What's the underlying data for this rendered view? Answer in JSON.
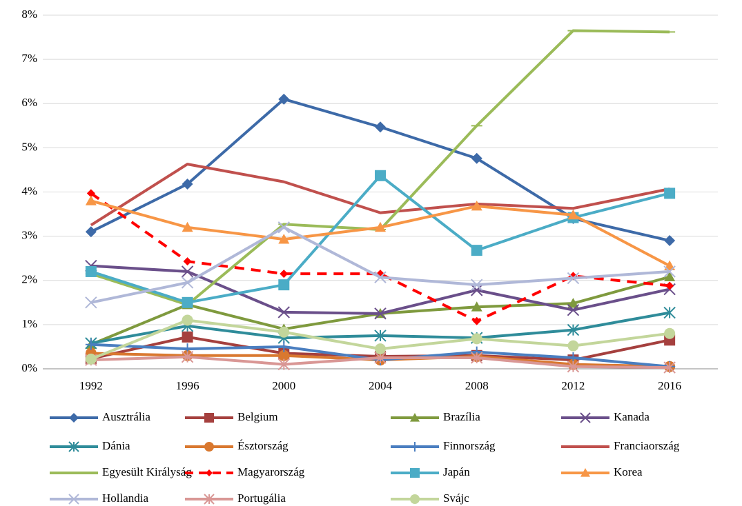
{
  "chart_data": {
    "type": "line",
    "categories": [
      "1992",
      "1996",
      "2000",
      "2004",
      "2008",
      "2012",
      "2016"
    ],
    "ylim": [
      0,
      8
    ],
    "yticks": [
      {
        "value": 0,
        "label": "0%"
      },
      {
        "value": 1,
        "label": "1%"
      },
      {
        "value": 2,
        "label": "2%"
      },
      {
        "value": 3,
        "label": "3%"
      },
      {
        "value": 4,
        "label": "4%"
      },
      {
        "value": 5,
        "label": "5%"
      },
      {
        "value": 6,
        "label": "6%"
      },
      {
        "value": 7,
        "label": "7%"
      },
      {
        "value": 8,
        "label": "8%"
      }
    ],
    "grid": true,
    "legend": "bottom",
    "series": [
      {
        "name": "Ausztrália",
        "color": "#3d6aa8",
        "marker": "diamond",
        "values": [
          3.1,
          4.18,
          6.1,
          5.47,
          4.76,
          3.4,
          2.9
        ]
      },
      {
        "name": "Belgium",
        "color": "#a5403e",
        "marker": "square",
        "values": [
          0.23,
          0.72,
          0.35,
          0.28,
          0.3,
          0.2,
          0.65
        ]
      },
      {
        "name": "Brazília",
        "color": "#7f9a3e",
        "marker": "triangle",
        "values": [
          0.55,
          1.45,
          0.9,
          1.25,
          1.4,
          1.48,
          2.08
        ]
      },
      {
        "name": "Kanada",
        "color": "#6a4f8a",
        "marker": "x",
        "values": [
          2.33,
          2.2,
          1.28,
          1.25,
          1.78,
          1.33,
          1.8
        ]
      },
      {
        "name": "Dánia",
        "color": "#2f8c9a",
        "marker": "star",
        "values": [
          0.58,
          0.97,
          0.7,
          0.75,
          0.7,
          0.88,
          1.27
        ]
      },
      {
        "name": "Észtország",
        "color": "#d9782f",
        "marker": "circle",
        "values": [
          0.35,
          0.3,
          0.3,
          0.2,
          0.28,
          0.1,
          0.05
        ]
      },
      {
        "name": "Finnország",
        "color": "#4a7ec0",
        "marker": "plus",
        "values": [
          0.55,
          0.45,
          0.5,
          0.2,
          0.38,
          0.25,
          0.05
        ]
      },
      {
        "name": "Franciaország",
        "color": "#c0504d",
        "marker": "none",
        "values": [
          3.25,
          4.63,
          4.23,
          3.53,
          3.73,
          3.63,
          4.07
        ]
      },
      {
        "name": "Egyesült Királyság",
        "color": "#9bbb59",
        "marker": "dash",
        "values": [
          2.15,
          1.45,
          3.27,
          3.15,
          5.5,
          7.65,
          7.62
        ]
      },
      {
        "name": "Magyarország",
        "color": "#ff0000",
        "marker": "diamond",
        "dashed": true,
        "values": [
          3.97,
          2.43,
          2.15,
          2.15,
          1.08,
          2.1,
          1.88
        ]
      },
      {
        "name": "Japán",
        "color": "#4bacc6",
        "marker": "square",
        "values": [
          2.2,
          1.5,
          1.9,
          4.37,
          2.68,
          3.42,
          3.97
        ]
      },
      {
        "name": "Korea",
        "color": "#f79646",
        "marker": "triangle",
        "values": [
          3.8,
          3.2,
          2.93,
          3.2,
          3.68,
          3.48,
          2.33
        ]
      },
      {
        "name": "Hollandia",
        "color": "#b0b8d8",
        "marker": "x",
        "values": [
          1.5,
          1.95,
          3.2,
          2.07,
          1.9,
          2.05,
          2.2
        ]
      },
      {
        "name": "Portugália",
        "color": "#d99795",
        "marker": "star",
        "values": [
          0.2,
          0.27,
          0.1,
          0.25,
          0.25,
          0.05,
          0.03
        ]
      },
      {
        "name": "Svájc",
        "color": "#c3d69b",
        "marker": "circle",
        "values": [
          0.22,
          1.1,
          0.83,
          0.45,
          0.68,
          0.52,
          0.8
        ]
      }
    ]
  }
}
